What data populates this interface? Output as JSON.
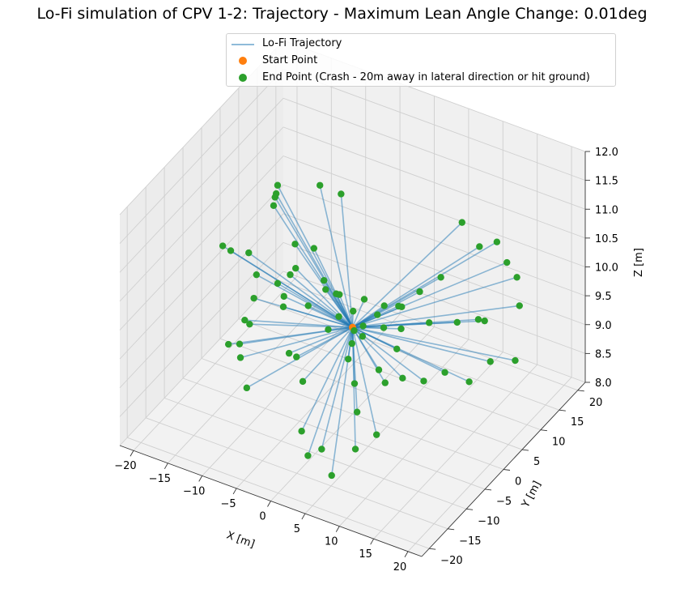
{
  "chart_data": {
    "type": "scatter",
    "projection": "3d",
    "title": "Lo-Fi simulation of CPV 1-2: Trajectory - Maximum Lean Angle Change: 0.01deg",
    "xlabel": "X [m]",
    "ylabel": "Y [m]",
    "zlabel": "Z [m]",
    "xlim": [
      -22,
      22
    ],
    "ylim": [
      -22,
      22
    ],
    "zlim": [
      8.0,
      12.0
    ],
    "xticks": [
      "−20",
      "−15",
      "−10",
      "−5",
      "0",
      "5",
      "10",
      "15",
      "20"
    ],
    "yticks": [
      "−20",
      "−15",
      "−10",
      "−5",
      "0",
      "5",
      "10",
      "15",
      "20"
    ],
    "zticks": [
      "8.0",
      "8.5",
      "9.0",
      "9.5",
      "10.0",
      "10.5",
      "11.0",
      "11.5",
      "12.0"
    ],
    "grid": true,
    "legend_position": "top-center",
    "colors": {
      "trajectory": "#1f77b4",
      "start": "#ff7f0e",
      "end": "#2ca02c"
    },
    "series": [
      {
        "name": "Lo-Fi Trajectory",
        "kind": "line"
      },
      {
        "name": "Start Point",
        "kind": "point"
      },
      {
        "name": "End Point (Crash - 20m away in lateral direction or hit ground)",
        "kind": "point"
      }
    ],
    "start_points": [
      [
        0.0,
        0.0,
        9.5
      ]
    ],
    "end_points": [
      [
        -20.0,
        2.0,
        9.9
      ],
      [
        -21.0,
        6.0,
        9.5
      ],
      [
        -20.0,
        9.0,
        9.3
      ],
      [
        -18.0,
        12.0,
        10.0
      ],
      [
        -16.0,
        9.0,
        10.5
      ],
      [
        -14.0,
        5.0,
        10.8
      ],
      [
        -12.0,
        2.0,
        11.3
      ],
      [
        -10.0,
        3.0,
        10.3
      ],
      [
        -8.0,
        -2.0,
        10.2
      ],
      [
        -8.0,
        6.0,
        11.2
      ],
      [
        -6.0,
        8.0,
        11.0
      ],
      [
        -4.0,
        -3.0,
        10.9
      ],
      [
        -2.0,
        -4.0,
        10.5
      ],
      [
        -16.0,
        3.0,
        9.1
      ],
      [
        -14.0,
        0.0,
        9.8
      ],
      [
        -13.0,
        -5.0,
        9.4
      ],
      [
        -12.0,
        -8.0,
        9.0
      ],
      [
        -10.0,
        -10.0,
        8.7
      ],
      [
        -15.0,
        0.0,
        8.9
      ],
      [
        -17.0,
        -2.0,
        8.6
      ],
      [
        -17.0,
        1.0,
        8.4
      ],
      [
        -12.0,
        2.0,
        9.6
      ],
      [
        -10.0,
        0.0,
        9.6
      ],
      [
        -9.0,
        -2.0,
        9.6
      ],
      [
        -6.0,
        -6.0,
        9.2
      ],
      [
        -6.0,
        -4.0,
        9.0
      ],
      [
        -4.0,
        -6.0,
        8.8
      ],
      [
        -2.0,
        -10.0,
        8.3
      ],
      [
        0.0,
        -12.0,
        8.1
      ],
      [
        2.0,
        -12.0,
        8.3
      ],
      [
        4.0,
        -13.0,
        8.0
      ],
      [
        8.0,
        -14.0,
        8.7
      ],
      [
        10.0,
        -12.0,
        8.9
      ],
      [
        5.0,
        -8.0,
        8.8
      ],
      [
        3.0,
        -5.0,
        9.0
      ],
      [
        1.0,
        -3.0,
        9.2
      ],
      [
        6.0,
        -4.0,
        9.3
      ],
      [
        8.0,
        -6.0,
        9.3
      ],
      [
        10.0,
        -5.0,
        9.4
      ],
      [
        12.0,
        -3.0,
        9.3
      ],
      [
        14.0,
        -1.0,
        9.4
      ],
      [
        17.0,
        0.0,
        9.3
      ],
      [
        19.0,
        2.0,
        9.6
      ],
      [
        21.0,
        5.0,
        9.5
      ],
      [
        20.0,
        8.0,
        10.2
      ],
      [
        18.0,
        11.0,
        10.4
      ],
      [
        16.0,
        12.0,
        10.5
      ],
      [
        14.0,
        13.0,
        10.7
      ],
      [
        12.0,
        12.0,
        10.6
      ],
      [
        10.0,
        11.0,
        11.0
      ],
      [
        8.0,
        9.0,
        10.1
      ],
      [
        6.0,
        7.0,
        9.9
      ],
      [
        4.0,
        5.0,
        9.7
      ],
      [
        2.0,
        3.0,
        9.6
      ],
      [
        9.0,
        4.0,
        9.7
      ],
      [
        12.0,
        6.0,
        9.7
      ],
      [
        14.0,
        8.0,
        9.7
      ],
      [
        16.0,
        6.0,
        9.9
      ],
      [
        4.0,
        1.0,
        9.6
      ],
      [
        6.0,
        2.0,
        9.6
      ],
      [
        -1.0,
        2.0,
        9.6
      ],
      [
        1.0,
        1.0,
        9.5
      ],
      [
        -2.0,
        0.0,
        9.6
      ],
      [
        0.5,
        -0.5,
        9.5
      ],
      [
        -3.0,
        2.0,
        9.8
      ],
      [
        -4.0,
        3.0,
        9.7
      ],
      [
        -5.0,
        2.0,
        9.8
      ],
      [
        3.0,
        3.0,
        9.8
      ],
      [
        5.0,
        4.0,
        9.8
      ],
      [
        -1.0,
        5.0,
        9.6
      ],
      [
        2.0,
        -1.0,
        9.5
      ],
      [
        -7.0,
        1.0,
        9.5
      ],
      [
        -3.0,
        -1.0,
        9.4
      ],
      [
        1.0,
        -2.0,
        9.4
      ],
      [
        7.0,
        -1.0,
        9.5
      ],
      [
        -11.0,
        5.0,
        9.7
      ]
    ]
  }
}
